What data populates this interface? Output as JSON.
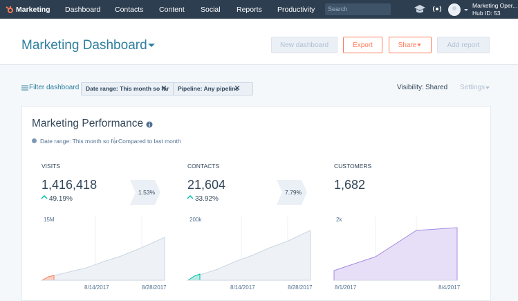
{
  "nav": {
    "brand": "Marketing",
    "items": [
      "Dashboard",
      "Contacts",
      "Content",
      "Social",
      "Reports",
      "Productivity"
    ],
    "search_placeholder": "Search",
    "user": {
      "name": "Marketing Oper...",
      "hub": "Hub ID: 53"
    }
  },
  "header": {
    "title": "Marketing Dashboard",
    "buttons": [
      "New dashboard",
      "Export",
      "Share",
      "Add report"
    ]
  },
  "filters": {
    "filter_link": "Filter dashboard",
    "chips": [
      "Date range: This month so far",
      "Pipeline: Any pipeline"
    ],
    "visibility_label": "Visibility:",
    "visibility_value": "Shared",
    "settings": "Settings"
  },
  "card": {
    "title": "Marketing Performance",
    "date_range": "Date range: This month so far",
    "comparison": "Compared to last month",
    "metrics": [
      {
        "label": "VISITS",
        "value": "1,416,418",
        "change": "49.19%"
      },
      {
        "label": "CONTACTS",
        "value": "21,604",
        "change": "33.92%"
      },
      {
        "label": "CUSTOMERS",
        "value": "1,682"
      }
    ],
    "conversions": [
      "1.53%",
      "7.79%"
    ],
    "charts": [
      {
        "y_label": "15M",
        "x_labels": [
          "8/14/2017",
          "8/28/2017"
        ]
      },
      {
        "y_label": "200k",
        "x_labels": [
          "8/14/2017",
          "8/28/2017"
        ]
      },
      {
        "y_label": "2k",
        "x_labels": [
          "8/1/2017",
          "8/4/2017"
        ]
      }
    ]
  }
}
